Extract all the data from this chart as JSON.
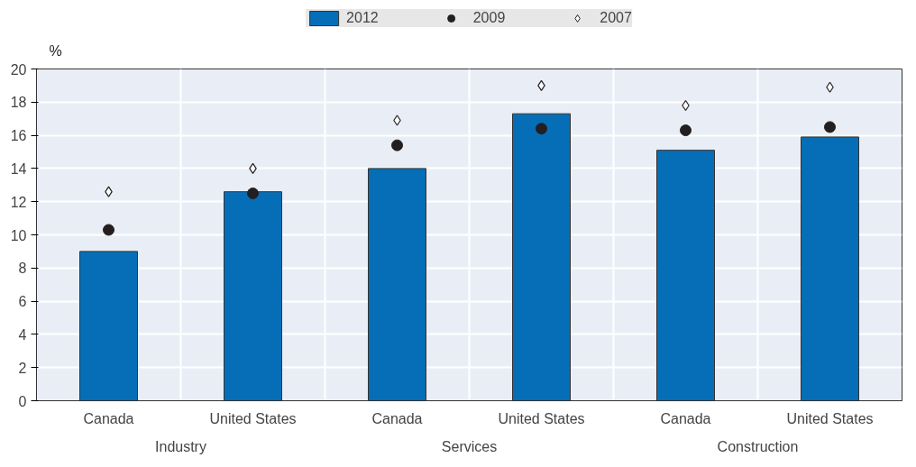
{
  "chart_data": {
    "type": "bar",
    "categories": [
      "Canada",
      "United States",
      "Canada",
      "United States",
      "Canada",
      "United States"
    ],
    "series": [
      {
        "name": "2012",
        "type": "bar",
        "color": "#066eb6",
        "values": [
          9.0,
          12.6,
          14.0,
          17.3,
          15.1,
          15.9
        ]
      },
      {
        "name": "2009",
        "type": "scatter",
        "marker": "circle",
        "color": "#231f20",
        "values": [
          10.3,
          12.5,
          15.4,
          16.4,
          16.3,
          16.5
        ]
      },
      {
        "name": "2007",
        "type": "scatter",
        "marker": "diamond",
        "color": "#ffffff",
        "values": [
          12.6,
          14.0,
          16.9,
          19.0,
          17.8,
          18.9
        ]
      }
    ],
    "annotations": [
      "Industry",
      "Services",
      "Construction"
    ],
    "ylabel": "%",
    "ylim": [
      0,
      20
    ],
    "yticks": [
      0,
      2,
      4,
      6,
      8,
      10,
      12,
      14,
      16,
      18,
      20
    ],
    "grid": true,
    "legend": "top"
  }
}
